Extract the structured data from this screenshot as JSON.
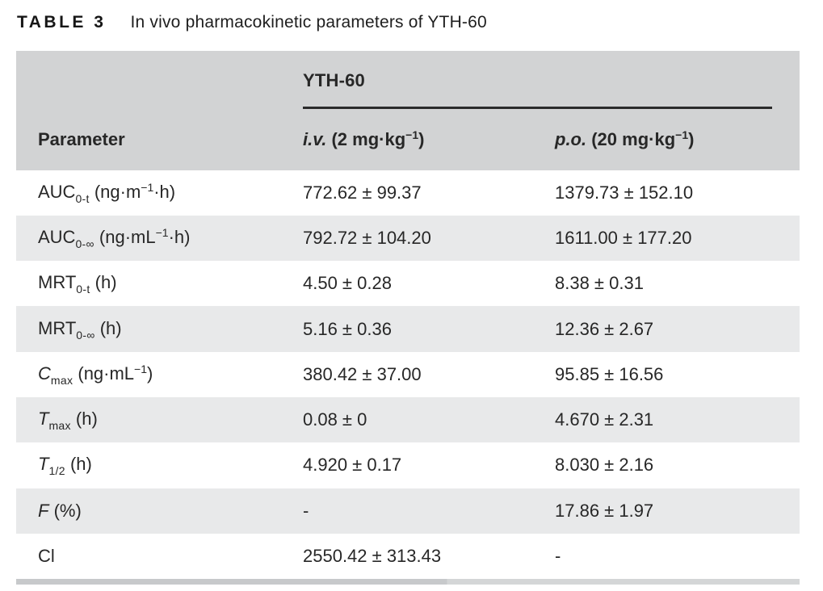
{
  "caption": {
    "label": "TABLE 3",
    "title": "In vivo pharmacokinetic parameters of YTH-60"
  },
  "table": {
    "group_header": "YTH-60",
    "columns": [
      {
        "name": "parameter",
        "segments": [
          {
            "t": "Parameter",
            "s": "n"
          }
        ]
      },
      {
        "name": "iv-dose",
        "segments": [
          {
            "t": "i.v. ",
            "s": "i"
          },
          {
            "t": "(2 mg·kg",
            "s": "n"
          },
          {
            "t": "−1",
            "s": "sup"
          },
          {
            "t": ")",
            "s": "n"
          }
        ]
      },
      {
        "name": "po-dose",
        "segments": [
          {
            "t": "p.o. ",
            "s": "i"
          },
          {
            "t": "(20 mg·kg",
            "s": "n"
          },
          {
            "t": "−1",
            "s": "sup"
          },
          {
            "t": ")",
            "s": "n"
          }
        ]
      }
    ],
    "rows": [
      {
        "param": [
          {
            "t": "AUC",
            "s": "n"
          },
          {
            "t": "0-t",
            "s": "sub"
          },
          {
            "t": " (ng·m",
            "s": "n"
          },
          {
            "t": "−1",
            "s": "sup"
          },
          {
            "t": "·h)",
            "s": "n"
          }
        ],
        "iv": "772.62 ± 99.37",
        "po": "1379.73 ± 152.10"
      },
      {
        "param": [
          {
            "t": "AUC",
            "s": "n"
          },
          {
            "t": "0-∞",
            "s": "sub"
          },
          {
            "t": " (ng·mL",
            "s": "n"
          },
          {
            "t": "−1",
            "s": "sup"
          },
          {
            "t": "·h)",
            "s": "n"
          }
        ],
        "iv": "792.72 ± 104.20",
        "po": "1611.00 ± 177.20"
      },
      {
        "param": [
          {
            "t": "MRT",
            "s": "n"
          },
          {
            "t": "0-t",
            "s": "sub"
          },
          {
            "t": " (h)",
            "s": "n"
          }
        ],
        "iv": "4.50 ± 0.28",
        "po": "8.38 ± 0.31"
      },
      {
        "param": [
          {
            "t": "MRT",
            "s": "n"
          },
          {
            "t": "0-∞",
            "s": "sub"
          },
          {
            "t": " (h)",
            "s": "n"
          }
        ],
        "iv": "5.16 ± 0.36",
        "po": "12.36 ± 2.67"
      },
      {
        "param": [
          {
            "t": "C",
            "s": "i"
          },
          {
            "t": "max",
            "s": "sub"
          },
          {
            "t": " (ng·mL",
            "s": "n"
          },
          {
            "t": "−1",
            "s": "sup"
          },
          {
            "t": ")",
            "s": "n"
          }
        ],
        "iv": "380.42 ± 37.00",
        "po": "95.85 ± 16.56"
      },
      {
        "param": [
          {
            "t": "T",
            "s": "i"
          },
          {
            "t": "max",
            "s": "sub"
          },
          {
            "t": " (h)",
            "s": "n"
          }
        ],
        "iv": "0.08 ± 0",
        "po": "4.670 ± 2.31"
      },
      {
        "param": [
          {
            "t": "T",
            "s": "i"
          },
          {
            "t": "1/2",
            "s": "sub"
          },
          {
            "t": " (h)",
            "s": "n"
          }
        ],
        "iv": "4.920 ± 0.17",
        "po": "8.030 ± 2.16"
      },
      {
        "param": [
          {
            "t": "F",
            "s": "i"
          },
          {
            "t": " (%)",
            "s": "n"
          }
        ],
        "iv": "-",
        "po": "17.86 ± 1.97"
      },
      {
        "param": [
          {
            "t": "Cl",
            "s": "n"
          }
        ],
        "iv": "2550.42 ± 313.43",
        "po": "-"
      }
    ],
    "colors": {
      "header_bg": "#d2d3d4",
      "stripe_bg": "#e8e9ea",
      "group_rule": "#2b2b2b",
      "bottom_rule": "#c9cbcd",
      "text": "#272727"
    }
  }
}
